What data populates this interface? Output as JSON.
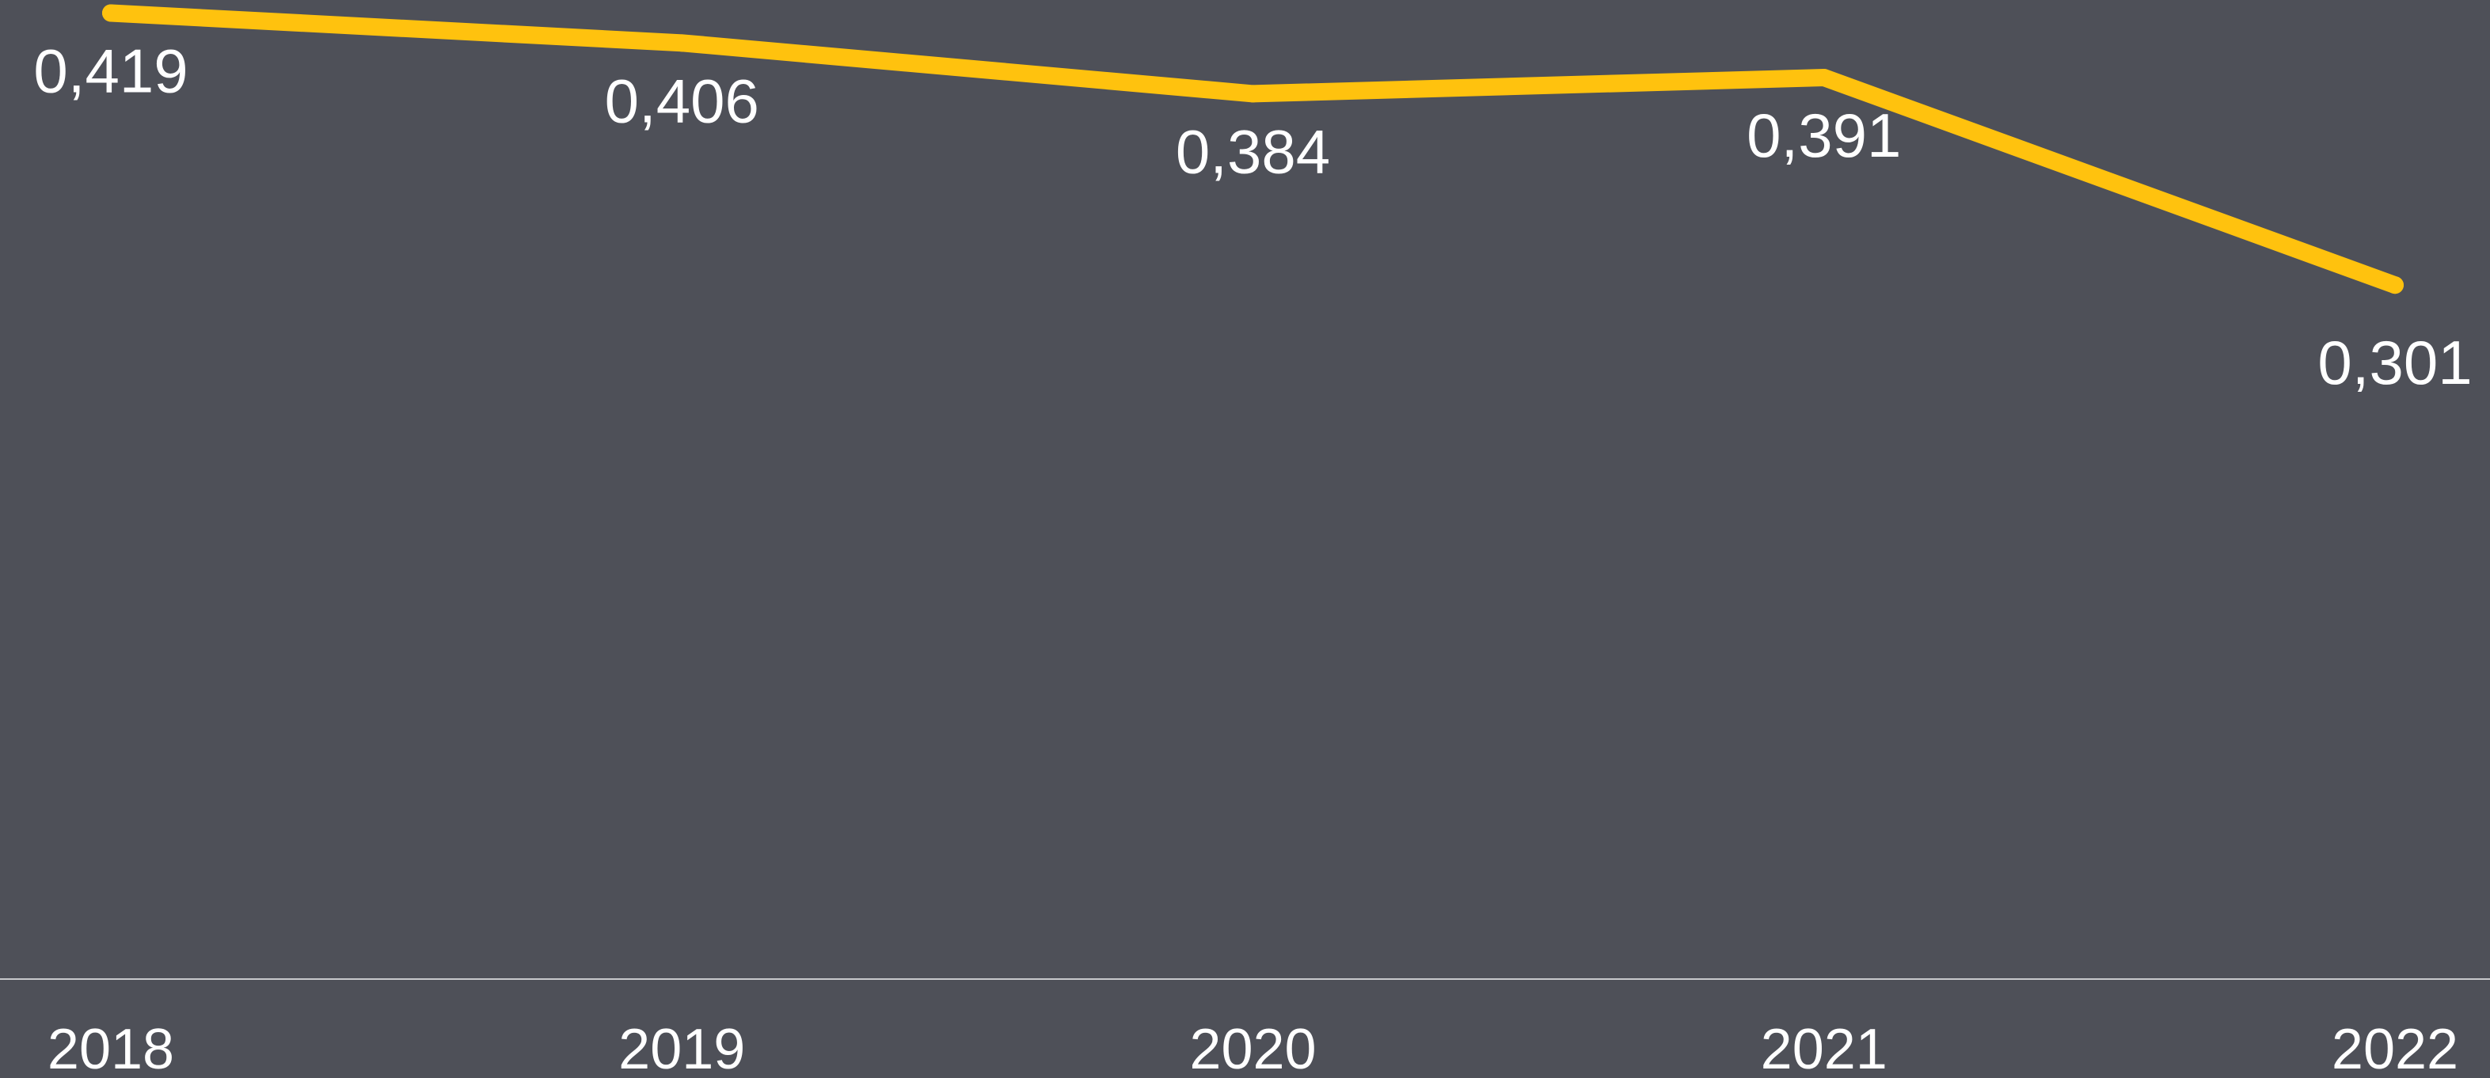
{
  "chart_data": {
    "type": "line",
    "categories": [
      "2018",
      "2019",
      "2020",
      "2021",
      "2022"
    ],
    "series": [
      {
        "values": [
          0.419,
          0.406,
          0.384,
          0.391,
          0.301
        ],
        "labels": [
          "0,419",
          "0,406",
          "0,384",
          "0,391",
          "0,301"
        ]
      }
    ],
    "grid": false,
    "legend": "none"
  },
  "colors": {
    "background": "#4e5058",
    "line": "#ffc20e",
    "axis": "#c8c9cc",
    "text": "#ffffff"
  }
}
